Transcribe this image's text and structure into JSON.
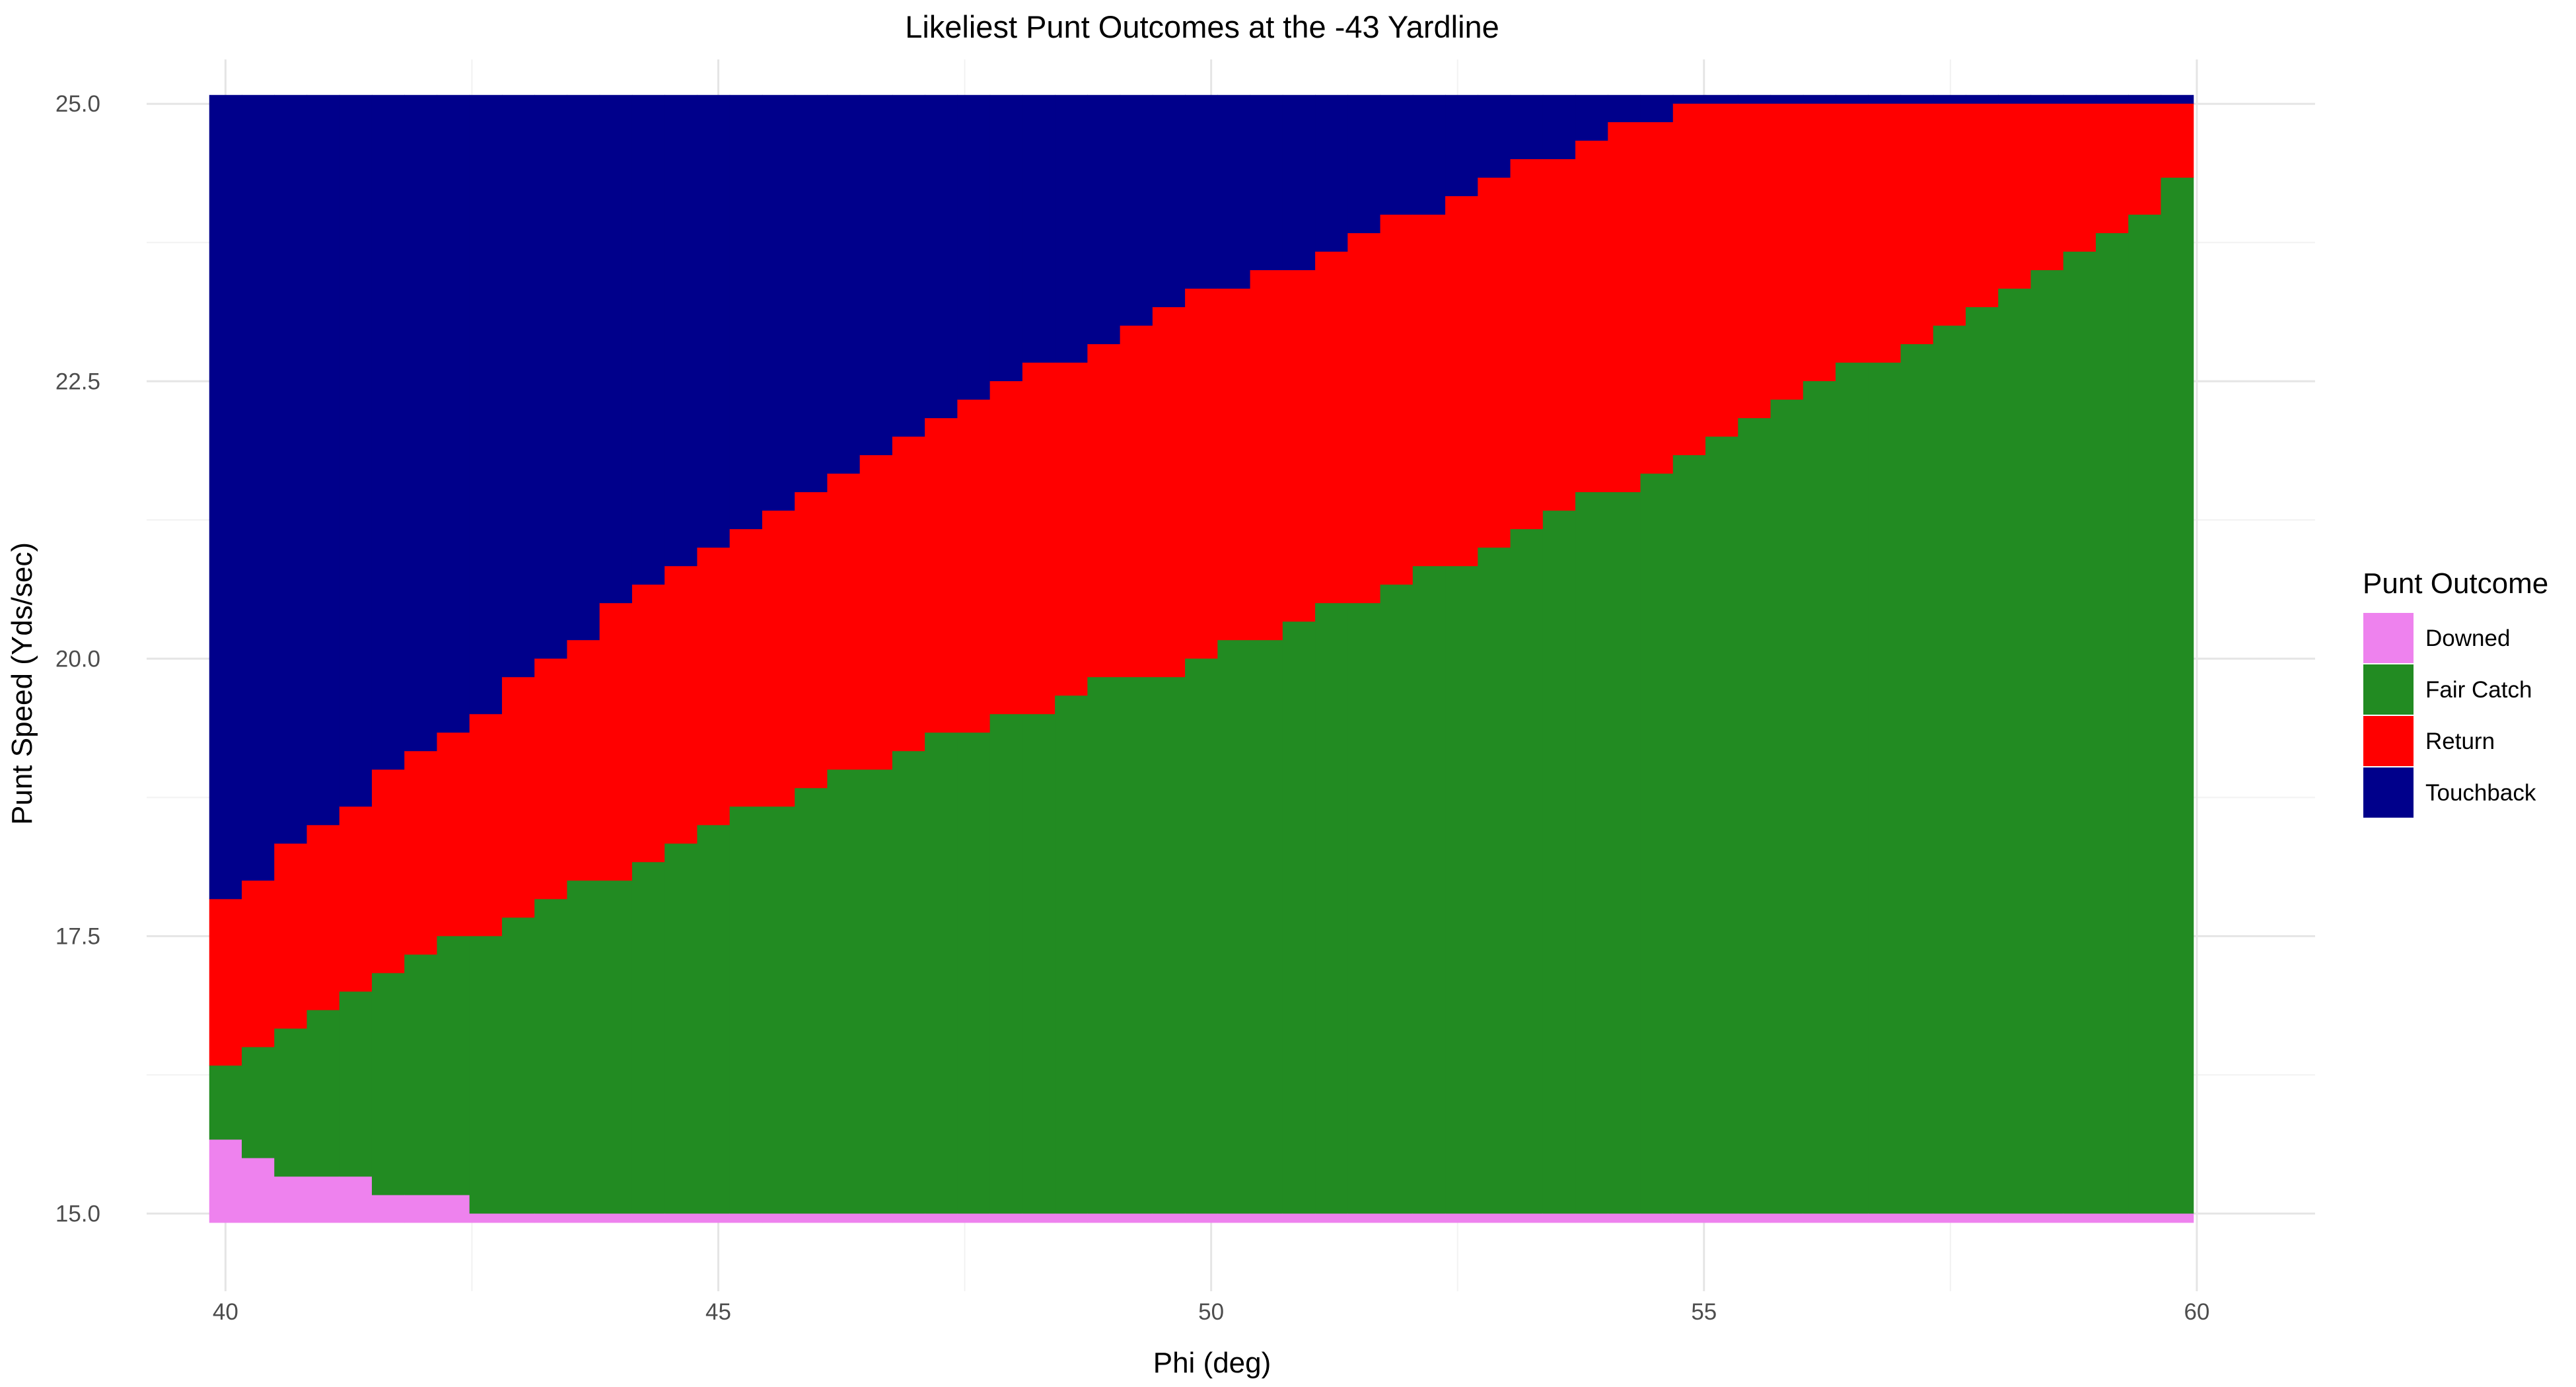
{
  "chart_data": {
    "type": "heatmap",
    "title": "Likeliest Punt Outcomes at the -43 Yardline",
    "xlabel": "Phi (deg)",
    "ylabel": "Punt Speed (Yds/sec)",
    "xlim": [
      39.2,
      61.2
    ],
    "ylim": [
      14.3,
      25.4
    ],
    "x_ticks": [
      40,
      45,
      50,
      55,
      60
    ],
    "x_tick_labels": [
      "40",
      "45",
      "50",
      "55",
      "60"
    ],
    "y_ticks": [
      15.0,
      17.5,
      20.0,
      22.5,
      25.0
    ],
    "y_tick_labels": [
      "15.0",
      "17.5",
      "20.0",
      "22.5",
      "25.0"
    ],
    "grid": true,
    "legend": {
      "title": "Punt Outcome",
      "position": "right",
      "entries": [
        {
          "label": "Downed",
          "color": "#EE82EE"
        },
        {
          "label": "Fair Catch",
          "color": "#228B22"
        },
        {
          "label": "Return",
          "color": "#FF0000"
        },
        {
          "label": "Touchback",
          "color": "#00008B"
        }
      ]
    },
    "grid_resolution": {
      "phi_step": 0.33,
      "speed_range": [
        15.0,
        25.0
      ],
      "phi_range": [
        40.0,
        60.0
      ]
    },
    "boundaries": {
      "description": "For each phi column, speed thresholds: below downed_max = Downed, below fair_catch_max = Fair Catch, below return_max = Return, above = Touchback",
      "phi": [
        40.0,
        41.0,
        42.0,
        43.0,
        44.0,
        45.0,
        46.0,
        47.0,
        48.0,
        49.0,
        50.0,
        51.0,
        52.0,
        53.0,
        54.0,
        55.0,
        56.0,
        57.0,
        58.0,
        59.0,
        60.0
      ],
      "downed_max": [
        15.6,
        15.3,
        15.2,
        15.0,
        15.0,
        15.0,
        15.0,
        15.0,
        15.0,
        15.0,
        15.0,
        15.0,
        15.0,
        15.0,
        15.0,
        15.0,
        15.0,
        15.0,
        15.0,
        15.0,
        15.0
      ],
      "fair_catch_max": [
        16.4,
        16.9,
        17.3,
        17.7,
        18.1,
        18.5,
        18.9,
        19.2,
        19.5,
        19.8,
        20.0,
        20.4,
        20.7,
        21.1,
        21.5,
        21.9,
        22.4,
        22.8,
        23.3,
        23.8,
        24.4
      ],
      "return_max": [
        17.8,
        18.5,
        19.2,
        19.8,
        20.5,
        21.0,
        21.6,
        22.0,
        22.5,
        22.9,
        23.3,
        23.6,
        24.0,
        24.4,
        24.7,
        25.0,
        25.0,
        25.0,
        25.0,
        25.0,
        25.0
      ]
    }
  }
}
